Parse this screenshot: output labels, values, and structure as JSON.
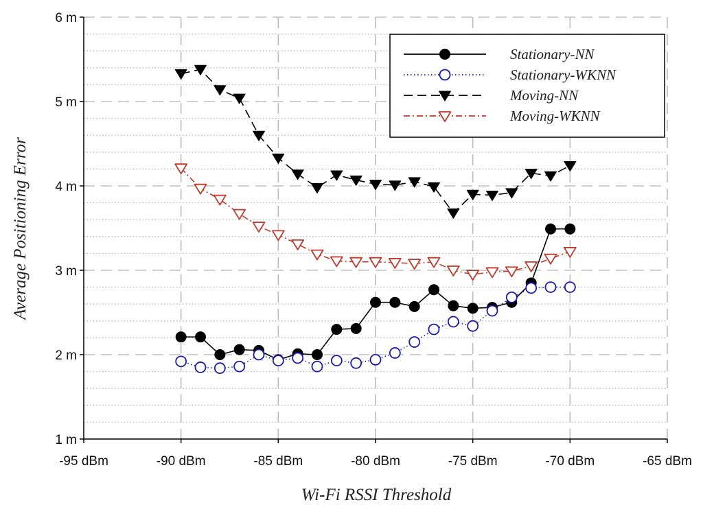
{
  "chart_data": {
    "type": "line",
    "title": "",
    "xlabel": "Wi-Fi RSSI Threshold",
    "ylabel": "Average Positioning Error",
    "xlim": [
      -95,
      -65
    ],
    "ylim": [
      1,
      6
    ],
    "x_ticks": [
      {
        "value": -95,
        "label": "-95 dBm"
      },
      {
        "value": -90,
        "label": "-90 dBm"
      },
      {
        "value": -85,
        "label": "-85 dBm"
      },
      {
        "value": -80,
        "label": "-80 dBm"
      },
      {
        "value": -75,
        "label": "-75 dBm"
      },
      {
        "value": -70,
        "label": "-70 dBm"
      },
      {
        "value": -65,
        "label": "-65 dBm"
      }
    ],
    "y_ticks": [
      {
        "value": 1,
        "label": "1 m"
      },
      {
        "value": 2,
        "label": "2 m"
      },
      {
        "value": 3,
        "label": "3 m"
      },
      {
        "value": 4,
        "label": "4 m"
      },
      {
        "value": 5,
        "label": "5 m"
      },
      {
        "value": 6,
        "label": "6 m"
      }
    ],
    "grid": true,
    "legend_position": "top-right",
    "x": [
      -90,
      -89,
      -88,
      -87,
      -86,
      -85,
      -84,
      -83,
      -82,
      -81,
      -80,
      -79,
      -78,
      -77,
      -76,
      -75,
      -74,
      -73,
      -72,
      -71,
      -70
    ],
    "series": [
      {
        "name": "Stationary-NN",
        "color": "#000000",
        "line_style": "solid",
        "marker": "filled-circle",
        "values": [
          2.21,
          2.21,
          2.0,
          2.06,
          2.05,
          1.94,
          2.01,
          2.0,
          2.3,
          2.31,
          2.62,
          2.62,
          2.57,
          2.77,
          2.58,
          2.55,
          2.56,
          2.62,
          2.85,
          3.49,
          3.49
        ]
      },
      {
        "name": "Stationary-WKNN",
        "color": "#1a1aa8",
        "line_style": "dotted",
        "marker": "open-circle",
        "values": [
          1.92,
          1.85,
          1.84,
          1.86,
          2.0,
          1.93,
          1.96,
          1.86,
          1.93,
          1.9,
          1.94,
          2.02,
          2.15,
          2.3,
          2.39,
          2.34,
          2.52,
          2.68,
          2.79,
          2.8,
          2.8
        ]
      },
      {
        "name": "Moving-NN",
        "color": "#000000",
        "line_style": "dashed",
        "marker": "filled-triangle-down",
        "values": [
          5.33,
          5.38,
          5.14,
          5.04,
          4.6,
          4.33,
          4.14,
          3.98,
          4.13,
          4.07,
          4.02,
          4.01,
          4.05,
          3.99,
          3.68,
          3.9,
          3.89,
          3.92,
          4.15,
          4.12,
          4.24
        ]
      },
      {
        "name": "Moving-WKNN",
        "color": "#c0392b",
        "line_style": "dashdot",
        "marker": "open-triangle-down",
        "values": [
          4.21,
          3.97,
          3.84,
          3.67,
          3.52,
          3.42,
          3.31,
          3.19,
          3.11,
          3.1,
          3.1,
          3.09,
          3.08,
          3.1,
          3.0,
          2.95,
          2.98,
          2.99,
          3.05,
          3.14,
          3.22
        ]
      }
    ]
  }
}
